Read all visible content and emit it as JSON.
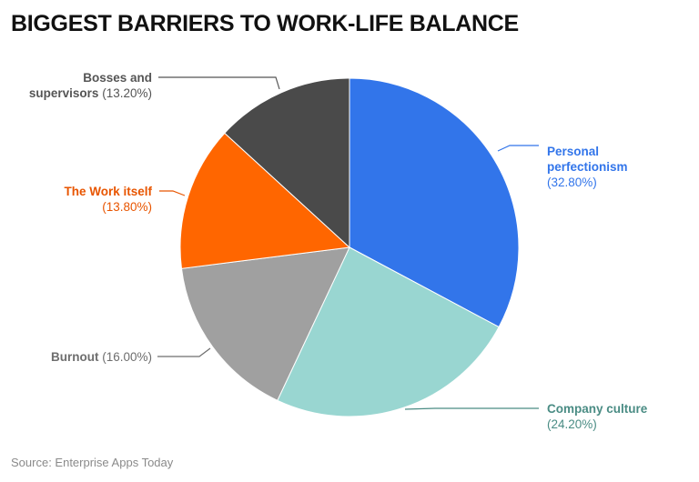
{
  "title": "BIGGEST BARRIERS TO WORK-LIFE BALANCE",
  "source": "Source: Enterprise Apps Today",
  "labels": {
    "personal": {
      "name1": "Personal",
      "name2": "perfectionism",
      "pct": "(32.80%)"
    },
    "company": {
      "name": "Company culture",
      "pct": "(24.20%)"
    },
    "burnout": {
      "name": "Burnout",
      "pct": "(16.00%)"
    },
    "work": {
      "name": "The Work itself",
      "pct": "(13.80%)"
    },
    "bosses": {
      "name1": "Bosses and",
      "name2": "supervisors",
      "pct": "(13.20%)"
    }
  },
  "chart_data": {
    "type": "pie",
    "title": "BIGGEST BARRIERS TO WORK-LIFE BALANCE",
    "categories": [
      "Personal perfectionism",
      "Company culture",
      "Burnout",
      "The Work itself",
      "Bosses and supervisors"
    ],
    "values": [
      32.8,
      24.2,
      16.0,
      13.8,
      13.2
    ],
    "colors": [
      "#3275ea",
      "#99d6d1",
      "#a0a0a0",
      "#ff6600",
      "#4a4a4a"
    ],
    "label_colors": [
      "#3275ea",
      "#4a8c84",
      "#6e6e6e",
      "#e85500",
      "#555555"
    ],
    "start_angle": "12 o'clock",
    "direction": "clockwise",
    "source": "Source: Enterprise Apps Today"
  }
}
